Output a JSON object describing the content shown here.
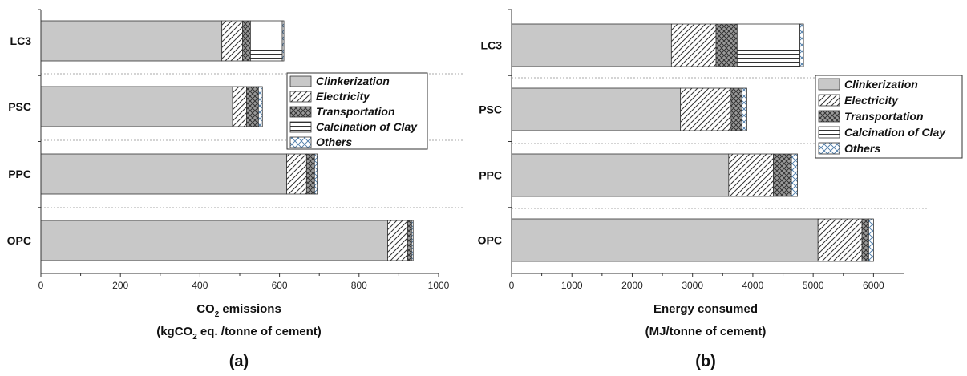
{
  "figure": {
    "panel_a": "(a)",
    "panel_b": "(b)"
  },
  "legend_entries": [
    {
      "name": "Clinkerization",
      "pattern": "solid-gray"
    },
    {
      "name": "Electricity",
      "pattern": "diagonal-hatch"
    },
    {
      "name": "Transportation",
      "pattern": "cross-hatch"
    },
    {
      "name": "Calcination of Clay",
      "pattern": "horizontal-lines"
    },
    {
      "name": "Others",
      "pattern": "diamond-cross"
    }
  ],
  "colors": {
    "clinker_fill": "#c8c8c8",
    "stroke": "#333333",
    "separator": "#aaaaaa"
  },
  "chart_data": [
    {
      "type": "bar",
      "orientation": "horizontal",
      "stacked": true,
      "panel": "(a)",
      "categories": [
        "LC3",
        "PSC",
        "PPC",
        "OPC"
      ],
      "series": [
        {
          "name": "Clinkerization",
          "values": [
            455,
            482,
            618,
            872
          ]
        },
        {
          "name": "Electricity",
          "values": [
            52,
            35,
            50,
            50
          ]
        },
        {
          "name": "Transportation",
          "values": [
            20,
            30,
            20,
            10
          ]
        },
        {
          "name": "Calcination of Clay",
          "values": [
            80,
            0,
            0,
            0
          ]
        },
        {
          "name": "Others",
          "values": [
            4,
            10,
            7,
            4
          ]
        }
      ],
      "xlabel_line1": "CO",
      "xlabel_sub": "2",
      "xlabel_line1_rest": " emissions",
      "xlabel_line2_a": "(kgCO",
      "xlabel_line2_sub": "2",
      "xlabel_line2_b": " eq. /tonne of cement)",
      "xlim": [
        0,
        1000
      ],
      "xticks": [
        0,
        200,
        400,
        600,
        800,
        1000
      ],
      "legend_position": "right"
    },
    {
      "type": "bar",
      "orientation": "horizontal",
      "stacked": true,
      "panel": "(b)",
      "categories": [
        "LC3",
        "PSC",
        "PPC",
        "OPC"
      ],
      "series": [
        {
          "name": "Clinkerization",
          "values": [
            2650,
            2800,
            3600,
            5080
          ]
        },
        {
          "name": "Electricity",
          "values": [
            740,
            840,
            740,
            730
          ]
        },
        {
          "name": "Transportation",
          "values": [
            350,
            180,
            300,
            110
          ]
        },
        {
          "name": "Calcination of Clay",
          "values": [
            1040,
            0,
            0,
            0
          ]
        },
        {
          "name": "Others",
          "values": [
            60,
            80,
            100,
            80
          ]
        }
      ],
      "xlabel_line1": "Energy consumed",
      "xlabel_line2": "(MJ/tonne of cement)",
      "xlim": [
        0,
        6500
      ],
      "xticks": [
        0,
        1000,
        2000,
        3000,
        4000,
        5000,
        6000
      ],
      "legend_position": "right"
    }
  ]
}
